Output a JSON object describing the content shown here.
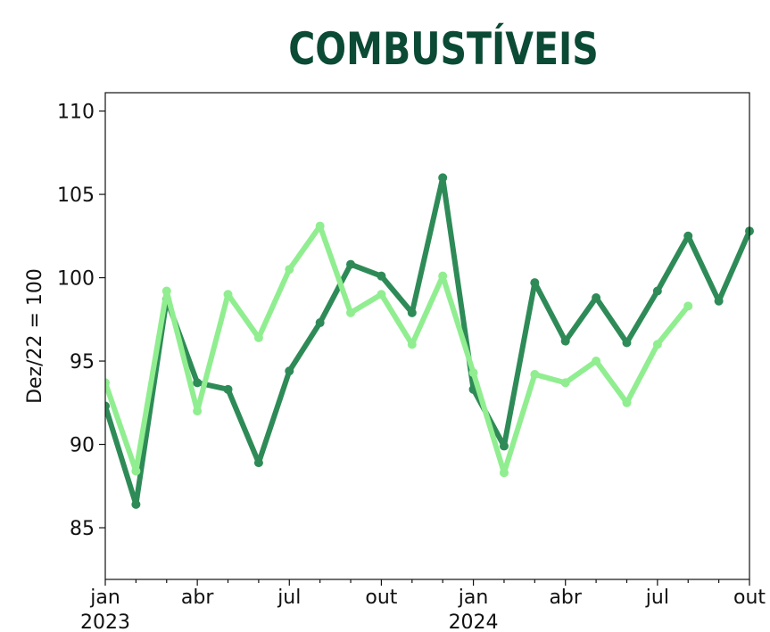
{
  "chart_data": {
    "type": "line",
    "title": "COMBUSTÍVEIS",
    "y_label": "Dez/22 = 100",
    "categories": [
      "jan",
      null,
      null,
      "abr",
      null,
      null,
      "jul",
      null,
      null,
      "out",
      null,
      null,
      "jan",
      null,
      null,
      "abr",
      null,
      null,
      "jul",
      null,
      null,
      "out"
    ],
    "x_sublabels": [
      "2023",
      null,
      null,
      null,
      null,
      null,
      null,
      null,
      null,
      null,
      null,
      null,
      "2024",
      null,
      null,
      null,
      null,
      null,
      null,
      null,
      null,
      null
    ],
    "series": [
      {
        "color": "#2e8b57",
        "values": [
          92.3,
          86.4,
          98.7,
          93.7,
          93.3,
          88.9,
          94.4,
          97.3,
          100.8,
          100.1,
          97.9,
          106.0,
          93.3,
          89.9,
          99.7,
          96.2,
          98.8,
          96.1,
          99.2,
          102.5,
          98.6,
          102.8
        ]
      },
      {
        "color": "#90ee90",
        "values": [
          93.7,
          88.4,
          99.2,
          92.0,
          99.0,
          96.4,
          100.5,
          103.1,
          97.9,
          99.0,
          96.0,
          100.1,
          94.3,
          88.3,
          94.2,
          93.7,
          95.0,
          92.5,
          96.0,
          98.3,
          null,
          null
        ]
      }
    ],
    "ylim": [
      81.9,
      111.1
    ],
    "yticks": [
      85,
      90,
      95,
      100,
      105,
      110
    ]
  }
}
